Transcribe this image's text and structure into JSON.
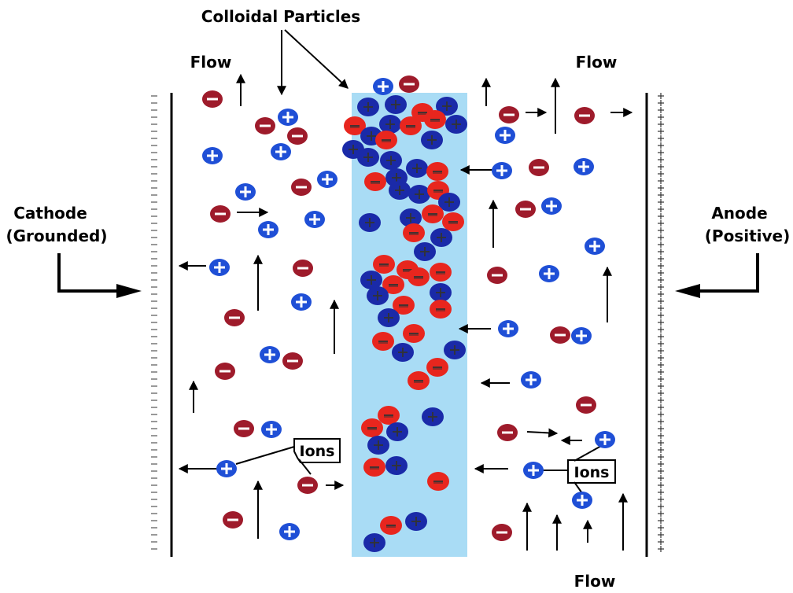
{
  "labels": {
    "colloidal": "Colloidal Particles",
    "flow_top_left": "Flow",
    "flow_top_right": "Flow",
    "flow_bottom": "Flow",
    "cathode_line1": "Cathode",
    "cathode_line2": "(Grounded)",
    "anode_line1": "Anode",
    "anode_line2": "(Positive)",
    "ions_left": "Ions",
    "ions_right": "Ions"
  },
  "colors": {
    "column": "#a9dcf5",
    "neg_ion": "#9e1b2b",
    "pos_ion": "#1f4fd6",
    "neg_colloid": "#e8261e",
    "pos_colloid": "#1a2aa8"
  }
}
